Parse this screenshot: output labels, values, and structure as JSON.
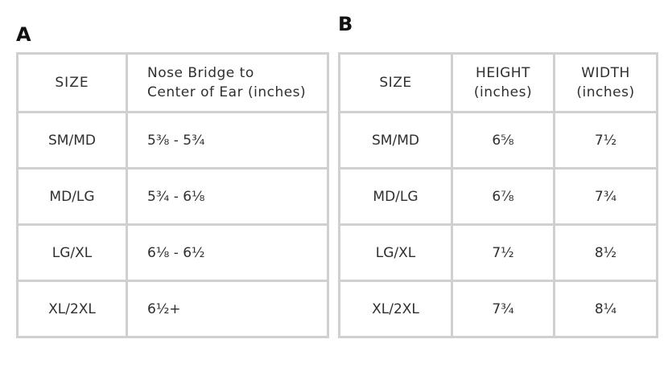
{
  "panel_a": {
    "label": "A",
    "headers": {
      "size": "SIZE",
      "measure_line1": "Nose Bridge to",
      "measure_line2": "Center of Ear (inches)"
    },
    "rows": [
      {
        "size": "SM/MD",
        "value": "5⅜ - 5¾"
      },
      {
        "size": "MD/LG",
        "value": "5¾ - 6⅛"
      },
      {
        "size": "LG/XL",
        "value": "6⅛ - 6½"
      },
      {
        "size": "XL/2XL",
        "value": "6½+"
      }
    ]
  },
  "panel_b": {
    "label": "B",
    "headers": {
      "size": "SIZE",
      "height_line1": "HEIGHT",
      "height_line2": "(inches)",
      "width_line1": "WIDTH",
      "width_line2": "(inches)"
    },
    "rows": [
      {
        "size": "SM/MD",
        "height": "6⅝",
        "width": "7½"
      },
      {
        "size": "MD/LG",
        "height": "6⅞",
        "width": "7¾"
      },
      {
        "size": "LG/XL",
        "height": "7½",
        "width": "8½"
      },
      {
        "size": "XL/2XL",
        "height": "7¾",
        "width": "8¼"
      }
    ]
  }
}
